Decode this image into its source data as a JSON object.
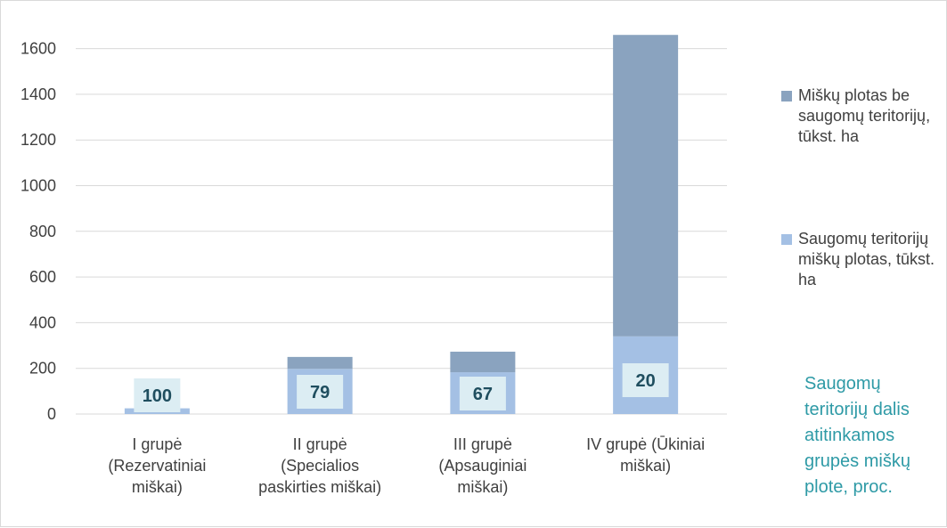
{
  "chart_data": {
    "type": "bar",
    "stacked": true,
    "categories": [
      [
        "I grupė",
        "(Rezervatiniai",
        "miškai)"
      ],
      [
        "II grupė",
        "(Specialios",
        "paskirties miškai)"
      ],
      [
        "III grupė",
        "(Apsauginiai",
        "miškai)"
      ],
      [
        "IV grupė (Ūkiniai",
        "miškai)"
      ]
    ],
    "series": [
      {
        "name": "Saugomų teritorijų miškų plotas,  tūkst. ha",
        "color": "#a4c0e4",
        "values": [
          25,
          198,
          183,
          340
        ]
      },
      {
        "name": "Miškų plotas be saugomų teritorijų, tūkst. ha",
        "color": "#8aa3bf",
        "values": [
          0,
          52,
          90,
          1320
        ]
      }
    ],
    "data_labels": [
      "100",
      "79",
      "67",
      "20"
    ],
    "yticks": [
      "0",
      "200",
      "400",
      "600",
      "800",
      "1000",
      "1200",
      "1400",
      "1600"
    ],
    "ylim": [
      0,
      1600
    ],
    "grid": true,
    "legend_position": "right",
    "annotation": "Saugomų teritorijų dalis atitinkamos grupės miškų plote, proc."
  }
}
